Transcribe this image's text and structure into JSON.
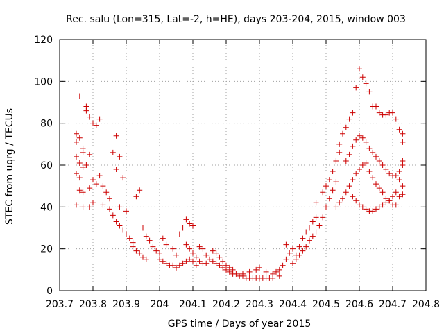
{
  "chart_data": {
    "type": "scatter",
    "title": "Rec. salu (Lon=315, Lat=-2, h=HE), days 203-204, 2015, window 003",
    "xlabel": "GPS time / Days of year 2015",
    "ylabel": "STEC from uqrg / TECUs",
    "xlim": [
      203.7,
      204.8
    ],
    "ylim": [
      0,
      120
    ],
    "xticks": [
      203.7,
      203.8,
      203.9,
      204.0,
      204.1,
      204.2,
      204.3,
      204.4,
      204.5,
      204.6,
      204.7,
      204.8
    ],
    "xtick_labels": [
      "203.7",
      "203.8",
      "203.9",
      "204",
      "204.1",
      "204.2",
      "204.3",
      "204.4",
      "204.5",
      "204.6",
      "204.7",
      "204.8"
    ],
    "yticks": [
      0,
      20,
      40,
      60,
      80,
      100,
      120
    ],
    "ytick_labels": [
      "0",
      "20",
      "40",
      "60",
      "80",
      "100",
      "120"
    ],
    "grid": true,
    "marker": "+",
    "color": "#cc0000",
    "series": [
      {
        "points": [
          [
            203.76,
            93
          ],
          [
            203.78,
            88
          ],
          [
            203.78,
            86
          ],
          [
            203.79,
            83
          ],
          [
            203.82,
            82
          ],
          [
            203.8,
            80
          ],
          [
            203.81,
            79
          ],
          [
            203.75,
            75
          ],
          [
            203.75,
            71
          ],
          [
            203.76,
            73
          ],
          [
            203.77,
            68
          ],
          [
            203.77,
            66
          ],
          [
            203.75,
            64
          ],
          [
            203.79,
            65
          ],
          [
            203.76,
            61
          ],
          [
            203.77,
            59
          ],
          [
            203.75,
            56
          ],
          [
            203.76,
            54
          ],
          [
            203.78,
            60
          ],
          [
            203.8,
            53
          ],
          [
            203.81,
            51
          ],
          [
            203.79,
            49
          ],
          [
            203.76,
            48
          ],
          [
            203.77,
            47
          ],
          [
            203.75,
            41
          ],
          [
            203.77,
            40
          ],
          [
            203.79,
            40
          ],
          [
            203.8,
            42
          ],
          [
            203.82,
            55
          ],
          [
            203.83,
            50
          ],
          [
            203.84,
            47
          ],
          [
            203.85,
            44
          ],
          [
            203.86,
            66
          ],
          [
            203.87,
            58
          ],
          [
            203.88,
            64
          ],
          [
            203.87,
            74
          ],
          [
            203.89,
            54
          ],
          [
            203.83,
            41
          ],
          [
            203.85,
            39
          ],
          [
            203.86,
            36
          ],
          [
            203.87,
            33
          ],
          [
            203.88,
            31
          ],
          [
            203.89,
            29
          ],
          [
            203.9,
            27
          ],
          [
            203.91,
            25
          ],
          [
            203.92,
            23
          ],
          [
            203.88,
            40
          ],
          [
            203.9,
            38
          ],
          [
            203.93,
            45
          ],
          [
            203.94,
            48
          ],
          [
            203.95,
            30
          ],
          [
            203.96,
            26
          ],
          [
            203.97,
            24
          ],
          [
            203.98,
            21
          ],
          [
            203.99,
            19
          ],
          [
            204.0,
            18
          ],
          [
            203.92,
            21
          ],
          [
            203.93,
            19
          ],
          [
            203.94,
            18
          ],
          [
            203.95,
            16
          ],
          [
            203.96,
            15
          ],
          [
            204.01,
            25
          ],
          [
            204.02,
            22
          ],
          [
            204.0,
            15
          ],
          [
            204.01,
            14
          ],
          [
            204.02,
            13
          ],
          [
            204.03,
            12
          ],
          [
            204.04,
            12
          ],
          [
            204.05,
            11
          ],
          [
            204.06,
            12
          ],
          [
            204.04,
            20
          ],
          [
            204.05,
            17
          ],
          [
            204.06,
            27
          ],
          [
            204.07,
            30
          ],
          [
            204.08,
            34
          ],
          [
            204.09,
            32
          ],
          [
            204.1,
            31
          ],
          [
            204.08,
            22
          ],
          [
            204.09,
            20
          ],
          [
            204.1,
            18
          ],
          [
            204.11,
            16
          ],
          [
            204.12,
            14
          ],
          [
            204.13,
            13
          ],
          [
            204.14,
            13
          ],
          [
            204.07,
            13
          ],
          [
            204.08,
            14
          ],
          [
            204.09,
            15
          ],
          [
            204.1,
            14
          ],
          [
            204.11,
            12
          ],
          [
            204.12,
            21
          ],
          [
            204.13,
            20
          ],
          [
            204.14,
            17
          ],
          [
            204.15,
            15
          ],
          [
            204.16,
            14
          ],
          [
            204.17,
            13
          ],
          [
            204.18,
            12
          ],
          [
            204.19,
            11
          ],
          [
            204.2,
            10
          ],
          [
            204.16,
            19
          ],
          [
            204.17,
            18
          ],
          [
            204.18,
            16
          ],
          [
            204.19,
            14
          ],
          [
            204.2,
            12
          ],
          [
            204.21,
            11
          ],
          [
            204.22,
            10
          ],
          [
            204.21,
            9
          ],
          [
            204.22,
            8
          ],
          [
            204.23,
            8
          ],
          [
            204.24,
            7
          ],
          [
            204.25,
            7
          ],
          [
            204.26,
            6
          ],
          [
            204.27,
            6
          ],
          [
            204.28,
            6
          ],
          [
            204.29,
            6
          ],
          [
            204.3,
            6
          ],
          [
            204.31,
            6
          ],
          [
            204.32,
            6
          ],
          [
            204.33,
            6
          ],
          [
            204.34,
            6
          ],
          [
            204.25,
            8
          ],
          [
            204.27,
            9
          ],
          [
            204.29,
            10
          ],
          [
            204.3,
            11
          ],
          [
            204.32,
            9
          ],
          [
            204.34,
            8
          ],
          [
            204.36,
            7
          ],
          [
            204.35,
            9
          ],
          [
            204.36,
            10
          ],
          [
            204.37,
            12
          ],
          [
            204.38,
            15
          ],
          [
            204.39,
            18
          ],
          [
            204.38,
            22
          ],
          [
            204.4,
            20
          ],
          [
            204.41,
            17
          ],
          [
            204.42,
            21
          ],
          [
            204.43,
            25
          ],
          [
            204.44,
            28
          ],
          [
            204.45,
            30
          ],
          [
            204.46,
            33
          ],
          [
            204.47,
            35
          ],
          [
            204.4,
            13
          ],
          [
            204.41,
            15
          ],
          [
            204.42,
            17
          ],
          [
            204.43,
            19
          ],
          [
            204.44,
            21
          ],
          [
            204.45,
            24
          ],
          [
            204.46,
            26
          ],
          [
            204.47,
            28
          ],
          [
            204.48,
            31
          ],
          [
            204.49,
            35
          ],
          [
            204.5,
            40
          ],
          [
            204.51,
            44
          ],
          [
            204.52,
            48
          ],
          [
            204.53,
            52
          ],
          [
            204.47,
            42
          ],
          [
            204.49,
            47
          ],
          [
            204.5,
            50
          ],
          [
            204.51,
            53
          ],
          [
            204.52,
            57
          ],
          [
            204.53,
            62
          ],
          [
            204.54,
            66
          ],
          [
            204.54,
            70
          ],
          [
            204.55,
            75
          ],
          [
            204.56,
            78
          ],
          [
            204.57,
            82
          ],
          [
            204.58,
            85
          ],
          [
            204.59,
            97
          ],
          [
            204.6,
            106
          ],
          [
            204.61,
            102
          ],
          [
            204.62,
            99
          ],
          [
            204.63,
            95
          ],
          [
            204.64,
            88
          ],
          [
            204.65,
            88
          ],
          [
            204.66,
            85
          ],
          [
            204.67,
            84
          ],
          [
            204.68,
            84
          ],
          [
            204.69,
            85
          ],
          [
            204.7,
            85
          ],
          [
            204.71,
            82
          ],
          [
            204.72,
            77
          ],
          [
            204.73,
            75
          ],
          [
            204.73,
            71
          ],
          [
            204.56,
            62
          ],
          [
            204.57,
            65
          ],
          [
            204.58,
            69
          ],
          [
            204.59,
            72
          ],
          [
            204.6,
            74
          ],
          [
            204.61,
            73
          ],
          [
            204.62,
            71
          ],
          [
            204.63,
            68
          ],
          [
            204.64,
            66
          ],
          [
            204.65,
            64
          ],
          [
            204.66,
            62
          ],
          [
            204.67,
            60
          ],
          [
            204.68,
            58
          ],
          [
            204.69,
            56
          ],
          [
            204.7,
            55
          ],
          [
            204.71,
            55
          ],
          [
            204.72,
            57
          ],
          [
            204.73,
            60
          ],
          [
            204.73,
            62
          ],
          [
            204.72,
            53
          ],
          [
            204.73,
            50
          ],
          [
            204.53,
            40
          ],
          [
            204.54,
            42
          ],
          [
            204.55,
            44
          ],
          [
            204.56,
            47
          ],
          [
            204.57,
            50
          ],
          [
            204.58,
            53
          ],
          [
            204.59,
            56
          ],
          [
            204.6,
            58
          ],
          [
            204.61,
            60
          ],
          [
            204.62,
            61
          ],
          [
            204.63,
            57
          ],
          [
            204.64,
            54
          ],
          [
            204.65,
            51
          ],
          [
            204.66,
            49
          ],
          [
            204.67,
            47
          ],
          [
            204.68,
            44
          ],
          [
            204.69,
            43
          ],
          [
            204.7,
            41
          ],
          [
            204.71,
            41
          ],
          [
            204.72,
            45
          ],
          [
            204.73,
            46
          ],
          [
            204.58,
            45
          ],
          [
            204.59,
            43
          ],
          [
            204.6,
            41
          ],
          [
            204.61,
            40
          ],
          [
            204.62,
            39
          ],
          [
            204.63,
            38
          ],
          [
            204.64,
            38
          ],
          [
            204.65,
            39
          ],
          [
            204.66,
            40
          ],
          [
            204.67,
            41
          ],
          [
            204.68,
            42
          ],
          [
            204.69,
            43
          ],
          [
            204.7,
            45
          ],
          [
            204.71,
            47
          ]
        ]
      }
    ]
  }
}
